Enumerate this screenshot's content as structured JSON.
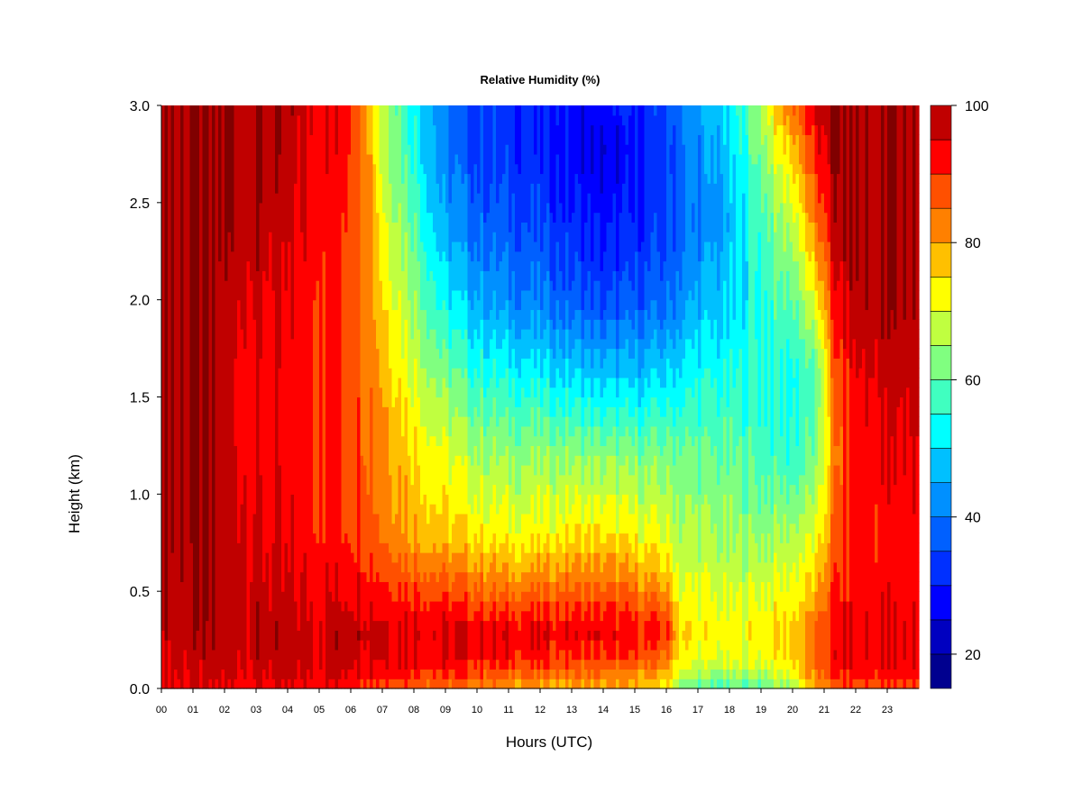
{
  "chart_data": {
    "type": "heatmap",
    "title": "Relative Humidity (%)",
    "xlabel": "Hours (UTC)",
    "ylabel": "Height (km)",
    "xlim": [
      0,
      24
    ],
    "ylim": [
      0,
      3
    ],
    "x_ticks": [
      "00",
      "01",
      "02",
      "03",
      "04",
      "05",
      "06",
      "07",
      "08",
      "09",
      "10",
      "11",
      "12",
      "13",
      "14",
      "15",
      "16",
      "17",
      "18",
      "19",
      "20",
      "21",
      "22",
      "23"
    ],
    "y_ticks": [
      "0.0",
      "0.5",
      "1.0",
      "1.5",
      "2.0",
      "2.5",
      "3.0"
    ],
    "colorbar": {
      "range": [
        15,
        100
      ],
      "ticks": [
        "20",
        "40",
        "60",
        "80",
        "100"
      ],
      "levels": [
        15,
        20,
        25,
        30,
        35,
        40,
        45,
        50,
        55,
        60,
        65,
        70,
        75,
        80,
        85,
        90,
        95,
        100
      ],
      "colors": [
        "#00008f",
        "#0000c0",
        "#0000ff",
        "#0030ff",
        "#0060ff",
        "#0090ff",
        "#00c0ff",
        "#00ffff",
        "#40ffc0",
        "#80ff80",
        "#c0ff40",
        "#ffff00",
        "#ffc000",
        "#ff8000",
        "#ff5000",
        "#ff0000",
        "#c00000",
        "#800000"
      ]
    },
    "heights_km": [
      0.0,
      0.05,
      0.15,
      0.3,
      0.5,
      0.8,
      1.2,
      1.6,
      2.0,
      2.4,
      2.8,
      3.0
    ],
    "hours": [
      0,
      1,
      2,
      3,
      4,
      5,
      6,
      6.5,
      7,
      8,
      9,
      10,
      11,
      12,
      13,
      14,
      15,
      16,
      16.5,
      17,
      18,
      19,
      20,
      20.8,
      21.3,
      22,
      23,
      23.8
    ],
    "rh_percent": [
      [
        96,
        95,
        96,
        98,
        99,
        100,
        100,
        100,
        100,
        100,
        100,
        100
      ],
      [
        95,
        95,
        97,
        98,
        99,
        100,
        100,
        100,
        100,
        100,
        100,
        100
      ],
      [
        94,
        95,
        97,
        98,
        98,
        98,
        97,
        96,
        98,
        100,
        100,
        100
      ],
      [
        93,
        95,
        97,
        98,
        97,
        96,
        93,
        93,
        96,
        99,
        100,
        100
      ],
      [
        93,
        95,
        97,
        97,
        95,
        93,
        92,
        92,
        93,
        95,
        97,
        98
      ],
      [
        92,
        95,
        97,
        97,
        94,
        92,
        92,
        92,
        92,
        93,
        94,
        95
      ],
      [
        91,
        96,
        98,
        99,
        95,
        91,
        90,
        90,
        90,
        91,
        92,
        92
      ],
      [
        90,
        95,
        97,
        98,
        94,
        89,
        87,
        86,
        86,
        85,
        84,
        84
      ],
      [
        88,
        93,
        96,
        97,
        92,
        85,
        83,
        80,
        76,
        72,
        68,
        68
      ],
      [
        86,
        91,
        95,
        96,
        90,
        80,
        76,
        70,
        65,
        60,
        55,
        54
      ],
      [
        84,
        88,
        94,
        95,
        88,
        76,
        70,
        62,
        52,
        44,
        40,
        40
      ],
      [
        82,
        86,
        93,
        95,
        86,
        74,
        66,
        56,
        46,
        38,
        34,
        34
      ],
      [
        80,
        84,
        92,
        94,
        84,
        72,
        64,
        54,
        42,
        36,
        32,
        32
      ],
      [
        79,
        83,
        91,
        94,
        85,
        72,
        64,
        52,
        40,
        34,
        30,
        30
      ],
      [
        79,
        82,
        90,
        94,
        86,
        74,
        64,
        50,
        37,
        31,
        27,
        28
      ],
      [
        78,
        81,
        89,
        94,
        86,
        74,
        63,
        48,
        34,
        28,
        25,
        28
      ],
      [
        77,
        80,
        88,
        93,
        84,
        72,
        62,
        48,
        36,
        30,
        28,
        30
      ],
      [
        74,
        76,
        84,
        91,
        80,
        70,
        62,
        50,
        38,
        34,
        32,
        35
      ],
      [
        62,
        66,
        73,
        76,
        70,
        66,
        62,
        52,
        43,
        38,
        40,
        42
      ],
      [
        58,
        62,
        70,
        74,
        70,
        66,
        60,
        54,
        46,
        40,
        42,
        44
      ],
      [
        58,
        62,
        70,
        72,
        68,
        64,
        60,
        54,
        48,
        46,
        48,
        50
      ],
      [
        60,
        64,
        71,
        74,
        70,
        64,
        58,
        56,
        56,
        58,
        64,
        68
      ],
      [
        64,
        70,
        76,
        76,
        72,
        66,
        56,
        54,
        60,
        68,
        78,
        86
      ],
      [
        76,
        82,
        86,
        86,
        78,
        70,
        62,
        58,
        72,
        84,
        92,
        95
      ],
      [
        84,
        90,
        94,
        92,
        90,
        86,
        82,
        86,
        92,
        98,
        100,
        100
      ],
      [
        86,
        92,
        94,
        94,
        93,
        92,
        92,
        94,
        99,
        100,
        100,
        100
      ],
      [
        86,
        92,
        94,
        94,
        93,
        92,
        94,
        96,
        100,
        100,
        100,
        100
      ],
      [
        88,
        93,
        95,
        95,
        94,
        94,
        95,
        97,
        100,
        100,
        100,
        100
      ]
    ]
  }
}
